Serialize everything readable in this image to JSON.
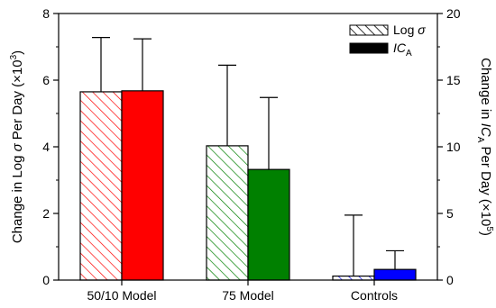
{
  "chart_data": {
    "type": "bar",
    "categories": [
      "50/10 Model",
      "75 Model",
      "Controls"
    ],
    "y_left": {
      "label_main": "Change in Log ",
      "label_sigma": "σ",
      "label_rest": " Per Day (×10",
      "label_exp": "3",
      "label_close": ")",
      "ylim": [
        0,
        8
      ],
      "ticks": [
        "0",
        "2",
        "4",
        "6",
        "8"
      ]
    },
    "y_right": {
      "label_main": "Change in ",
      "label_ic": "IC",
      "label_sub": "A",
      "label_rest": " Per Day (×10",
      "label_exp": "5",
      "label_close": ")",
      "ylim": [
        0,
        20
      ],
      "ticks": [
        "0",
        "5",
        "10",
        "15",
        "20"
      ]
    },
    "series": [
      {
        "name": "Log σ",
        "legend_main": "Log ",
        "legend_sym": "σ",
        "axis": "left",
        "style": "hatched",
        "values": [
          5.65,
          4.03,
          0.12
        ],
        "error_upper": [
          7.28,
          6.45,
          1.95
        ]
      },
      {
        "name": "ICA",
        "legend_main": "IC",
        "legend_sub": "A",
        "axis": "right",
        "style": "solid",
        "values": [
          14.2,
          8.3,
          0.8
        ],
        "error_upper": [
          18.1,
          13.7,
          2.2
        ]
      }
    ],
    "category_colors": [
      "#ff0000",
      "#008000",
      "#0000ff"
    ],
    "legend_position": "top-right",
    "grid": false
  }
}
